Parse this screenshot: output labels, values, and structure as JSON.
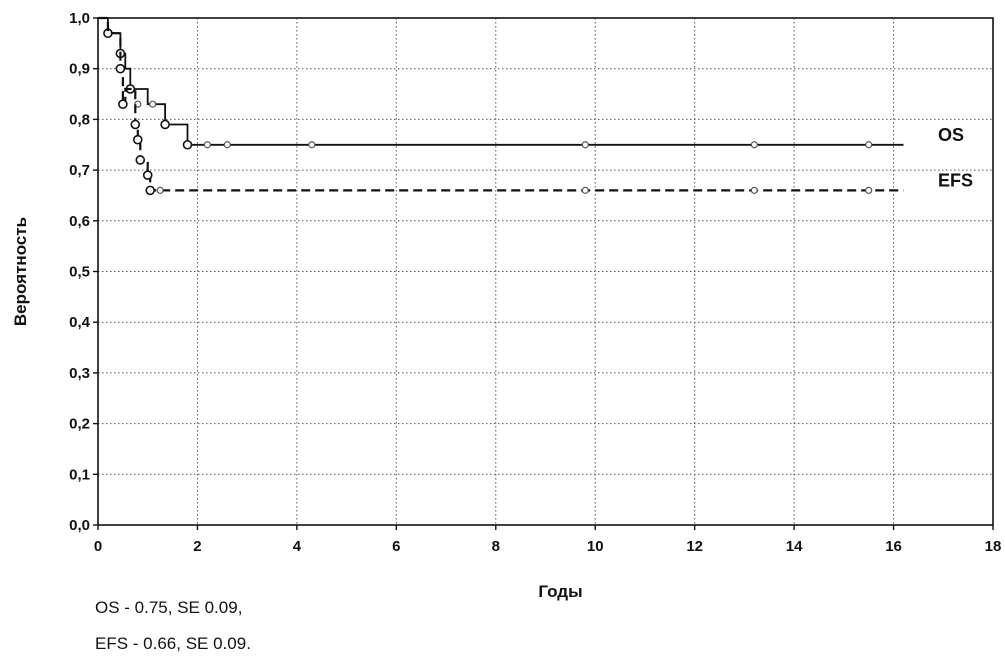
{
  "chart_data": {
    "type": "line",
    "title": "",
    "xlabel": "Годы",
    "ylabel": "Вероятность",
    "xlim": [
      0,
      18
    ],
    "ylim": [
      0.0,
      1.0
    ],
    "x_ticks": [
      "0",
      "2",
      "4",
      "6",
      "8",
      "10",
      "12",
      "14",
      "16",
      "18"
    ],
    "y_ticks": [
      "0,0",
      "0,1",
      "0,2",
      "0,3",
      "0,4",
      "0,5",
      "0,6",
      "0,7",
      "0,8",
      "0,9",
      "1,0"
    ],
    "grid": true,
    "series": [
      {
        "name": "OS",
        "style": "solid",
        "points": [
          [
            0,
            1.0
          ],
          [
            0.2,
            1.0
          ],
          [
            0.2,
            0.97
          ],
          [
            0.45,
            0.97
          ],
          [
            0.45,
            0.93
          ],
          [
            0.55,
            0.93
          ],
          [
            0.55,
            0.9
          ],
          [
            0.65,
            0.9
          ],
          [
            0.65,
            0.86
          ],
          [
            1.0,
            0.86
          ],
          [
            1.0,
            0.83
          ],
          [
            1.35,
            0.83
          ],
          [
            1.35,
            0.79
          ],
          [
            1.8,
            0.79
          ],
          [
            1.8,
            0.75
          ],
          [
            16.2,
            0.75
          ]
        ],
        "events": [
          [
            0.2,
            0.97
          ],
          [
            0.45,
            0.93
          ],
          [
            0.65,
            0.86
          ],
          [
            1.35,
            0.79
          ],
          [
            1.8,
            0.75
          ]
        ],
        "censored": [
          [
            0.8,
            0.83
          ],
          [
            1.1,
            0.83
          ],
          [
            2.2,
            0.75
          ],
          [
            2.6,
            0.75
          ],
          [
            4.3,
            0.75
          ],
          [
            9.8,
            0.75
          ],
          [
            13.2,
            0.75
          ],
          [
            15.5,
            0.75
          ]
        ]
      },
      {
        "name": "EFS",
        "style": "dashed",
        "points": [
          [
            0,
            1.0
          ],
          [
            0.2,
            1.0
          ],
          [
            0.2,
            0.97
          ],
          [
            0.45,
            0.97
          ],
          [
            0.45,
            0.9
          ],
          [
            0.5,
            0.9
          ],
          [
            0.5,
            0.83
          ],
          [
            0.55,
            0.83
          ],
          [
            0.55,
            0.86
          ],
          [
            0.75,
            0.86
          ],
          [
            0.75,
            0.79
          ],
          [
            0.8,
            0.79
          ],
          [
            0.8,
            0.76
          ],
          [
            0.85,
            0.76
          ],
          [
            0.85,
            0.72
          ],
          [
            1.0,
            0.72
          ],
          [
            1.0,
            0.69
          ],
          [
            1.05,
            0.69
          ],
          [
            1.05,
            0.66
          ],
          [
            16.2,
            0.66
          ]
        ],
        "events": [
          [
            0.45,
            0.9
          ],
          [
            0.5,
            0.83
          ],
          [
            0.75,
            0.79
          ],
          [
            0.8,
            0.76
          ],
          [
            0.85,
            0.72
          ],
          [
            1.0,
            0.69
          ],
          [
            1.05,
            0.66
          ]
        ],
        "censored": [
          [
            1.25,
            0.66
          ],
          [
            9.8,
            0.66
          ],
          [
            13.2,
            0.66
          ],
          [
            15.5,
            0.66
          ]
        ]
      }
    ],
    "summary": [
      "OS -  0.75,  SE 0.09,",
      "EFS -  0.66,  SE 0.09."
    ]
  }
}
